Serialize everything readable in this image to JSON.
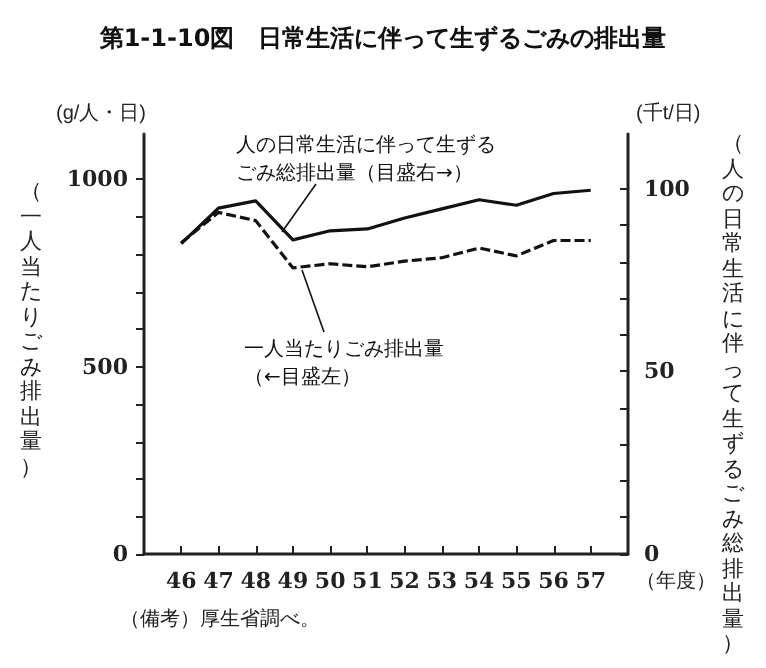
{
  "chart_data": {
    "type": "line",
    "title": "第1-1-10図　日常生活に伴って生ずるごみの排出量",
    "ylabel": "（一人当たりごみ排出量）",
    "y2label": "（人の日常生活に伴って生ずるごみ総排出量）",
    "x": [
      46,
      47,
      48,
      49,
      50,
      51,
      52,
      53,
      54,
      55,
      56,
      57
    ],
    "xlim": [
      45,
      58
    ],
    "xticks": [
      46,
      47,
      48,
      49,
      50,
      51,
      52,
      53,
      54,
      55,
      56,
      57
    ],
    "ylim": [
      0,
      1120
    ],
    "yticks": [
      0,
      {
        "value": 100,
        "label": null
      },
      {
        "value": 200,
        "label": null
      },
      {
        "value": 300,
        "label": null
      },
      {
        "value": 400,
        "label": null
      },
      500,
      {
        "value": 600,
        "label": null
      },
      {
        "value": 700,
        "label": null
      },
      {
        "value": 800,
        "label": null
      },
      {
        "value": 900,
        "label": null
      },
      1000
    ],
    "y2lim": [
      0,
      115
    ],
    "y2ticks": [
      0,
      {
        "value": 10,
        "label": null
      },
      {
        "value": 20,
        "label": null
      },
      {
        "value": 30,
        "label": null
      },
      {
        "value": 40,
        "label": null
      },
      50,
      {
        "value": 60,
        "label": null
      },
      {
        "value": 70,
        "label": null
      },
      {
        "value": 80,
        "label": null
      },
      {
        "value": 90,
        "label": null
      },
      100
    ],
    "series": [
      {
        "name": "人の日常生活に伴って生ずるごみ総排出量（目盛右→）",
        "color": "#111111",
        "axis": "y2",
        "line_style": "solid",
        "values": [
          85,
          94.7,
          96.7,
          86,
          88.5,
          89,
          92,
          94.5,
          97,
          95.5,
          98.7,
          99.6
        ]
      },
      {
        "name": "一人当たりごみ排出量（←目盛左）",
        "color": "#111111",
        "line_style": "dashed",
        "values": [
          830,
          911,
          889,
          763,
          774,
          766,
          781,
          790,
          816,
          795,
          836,
          836
        ]
      }
    ],
    "annotations": [
      "(g/人・日)",
      "(千t/日)",
      "（年度）",
      "（備考）厚生省調べ。"
    ],
    "grid": false,
    "legend": false,
    "marker": "none"
  }
}
